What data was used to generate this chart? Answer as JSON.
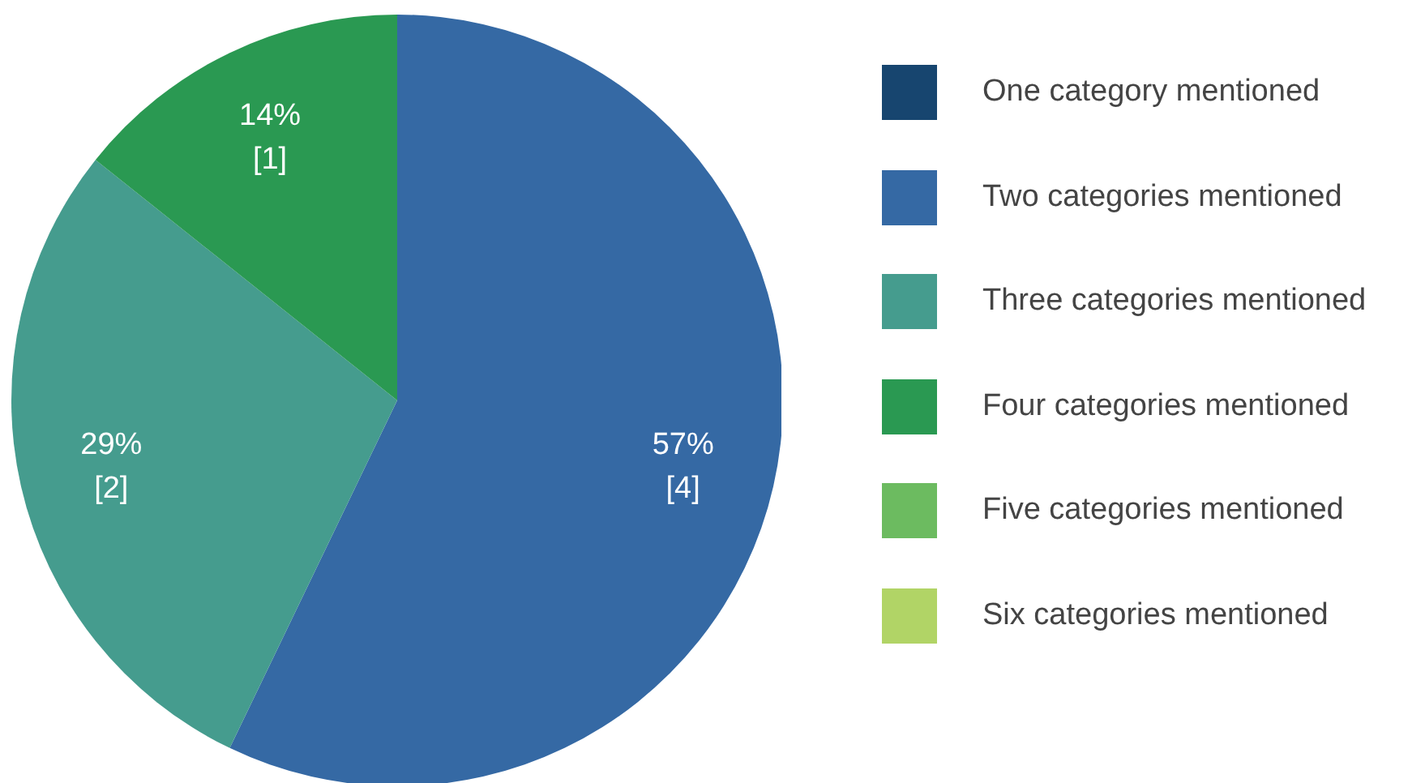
{
  "chart_data": {
    "type": "pie",
    "categories": [
      "One category mentioned",
      "Two categories mentioned",
      "Three categories mentioned",
      "Four categories mentioned",
      "Five categories mentioned",
      "Six categories mentioned"
    ],
    "values": [
      0,
      4,
      2,
      1,
      0,
      0
    ],
    "value_labels": [
      null,
      "57%\n[4]",
      "29%\n[2]",
      "14%\n[1]",
      null,
      null
    ],
    "colors": [
      "#17456f",
      "#3569a4",
      "#459c8e",
      "#2a9952",
      "#6cbb60",
      "#b1d466"
    ],
    "legend": "right"
  }
}
